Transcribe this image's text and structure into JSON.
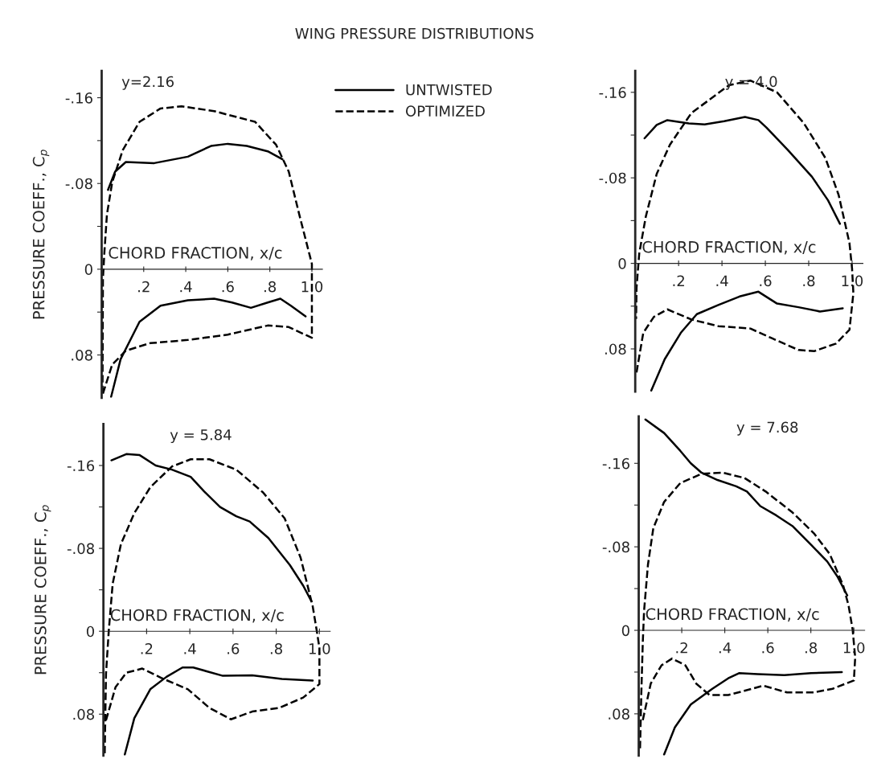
{
  "chart_data": [
    {
      "type": "line",
      "title": "WING PRESSURE DISTRIBUTIONS",
      "subtitle": "y=2.16",
      "xlabel": "CHORD FRACTION, x/c",
      "ylabel": "PRESSURE COEFF., C$_{p}$",
      "legend": "top right",
      "xlim": [
        0,
        1.05
      ],
      "ylim": [
        0.12,
        -0.185
      ],
      "xticks": [
        {
          "value": 0,
          "label": null
        },
        {
          "value": 0.2,
          "label": ".2"
        },
        {
          "value": 0.4,
          "label": ".4"
        },
        {
          "value": 0.6,
          "label": ".6"
        },
        {
          "value": 0.8,
          "label": ".8"
        },
        {
          "value": 1.0,
          "label": "1.0"
        }
      ],
      "yticks": [
        {
          "value": -0.16,
          "label": "-.16"
        },
        {
          "value": -0.12,
          "label": null
        },
        {
          "value": -0.08,
          "label": "-.08"
        },
        {
          "value": -0.04,
          "label": null
        },
        0,
        {
          "value": 0.04,
          "label": null
        },
        {
          "value": 0.08,
          "label": ".08"
        }
      ],
      "series": [
        {
          "name": "UNTWISTED",
          "color": "#000000",
          "line_style": "solid",
          "x": [
            0.03,
            0.064,
            0.115,
            0.25,
            0.41,
            0.52,
            0.6,
            0.69,
            0.79,
            0.86
          ],
          "values": [
            -0.074,
            -0.091,
            -0.1,
            -0.099,
            -0.105,
            -0.115,
            -0.117,
            -0.115,
            -0.11,
            -0.1025
          ]
        },
        {
          "color": "#000000",
          "line_style": "solid",
          "x": [
            0.045,
            0.09,
            0.18,
            0.28,
            0.41,
            0.535,
            0.62,
            0.71,
            0.79,
            0.85,
            0.9,
            0.97
          ],
          "values": [
            0.119,
            0.084,
            0.049,
            0.034,
            0.029,
            0.0275,
            0.031,
            0.036,
            0.031,
            0.0275,
            0.034,
            0.044
          ]
        },
        {
          "name": "OPTIMIZED",
          "color": "#000000",
          "line_style": "dashed",
          "x": [
            0.006,
            0.05,
            0.115,
            0.23,
            0.41,
            0.6,
            0.79,
            0.89,
            1.0,
            1.0,
            1.0,
            0.94,
            0.89,
            0.83,
            0.73,
            0.535,
            0.38,
            0.28,
            0.18,
            0.1,
            0.05,
            0.025,
            0.013,
            0.006,
            0.004
          ],
          "values": [
            0.116,
            0.089,
            0.076,
            0.069,
            0.066,
            0.061,
            0.0525,
            0.054,
            0.064,
            0.049,
            -0.005,
            -0.051,
            -0.091,
            -0.116,
            -0.1375,
            -0.1475,
            -0.152,
            -0.15,
            -0.1375,
            -0.111,
            -0.081,
            -0.051,
            -0.016,
            0.009,
            0.116
          ]
        }
      ]
    },
    {
      "type": "line",
      "subtitle": "y = 4.0",
      "xlabel": "CHORD FRACTION, x/c",
      "xlim": [
        0,
        1.05
      ],
      "ylim": [
        0.12,
        -0.18
      ],
      "xticks": [
        {
          "value": 0,
          "label": null
        },
        {
          "value": 0.2,
          "label": ".2"
        },
        {
          "value": 0.4,
          "label": ".4"
        },
        {
          "value": 0.6,
          "label": ".6"
        },
        {
          "value": 0.8,
          "label": ".8"
        },
        {
          "value": 1.0,
          "label": "1.0"
        }
      ],
      "yticks": [
        {
          "value": -0.16,
          "label": "-.16"
        },
        {
          "value": -0.12,
          "label": null
        },
        {
          "value": -0.08,
          "label": "-.08"
        },
        {
          "value": -0.04,
          "label": null
        },
        0,
        {
          "value": 0.04,
          "label": null
        },
        {
          "value": 0.08,
          "label": ".08"
        }
      ],
      "series": [
        {
          "color": "#000000",
          "line_style": "solid",
          "x": [
            0.043,
            0.099,
            0.148,
            0.247,
            0.32,
            0.41,
            0.506,
            0.568,
            0.605,
            0.704,
            0.815,
            0.889,
            0.944
          ],
          "values": [
            -0.117,
            -0.1295,
            -0.134,
            -0.131,
            -0.13,
            -0.133,
            -0.137,
            -0.134,
            -0.127,
            -0.106,
            -0.081,
            -0.059,
            -0.037
          ]
        },
        {
          "color": "#000000",
          "line_style": "solid",
          "x": [
            0.074,
            0.136,
            0.21,
            0.284,
            0.383,
            0.481,
            0.568,
            0.654,
            0.753,
            0.852,
            0.957
          ],
          "values": [
            0.119,
            0.0896,
            0.065,
            0.0475,
            0.039,
            0.031,
            0.0265,
            0.0376,
            0.041,
            0.045,
            0.042
          ]
        },
        {
          "color": "#000000",
          "line_style": "dashed",
          "x": [
            0.006,
            0.037,
            0.086,
            0.148,
            0.259,
            0.383,
            0.531,
            0.63,
            0.753,
            0.827,
            0.926,
            0.988,
            1.006,
            1.0,
            0.988,
            0.938,
            0.877,
            0.778,
            0.654,
            0.531,
            0.432,
            0.259,
            0.16,
            0.099,
            0.049,
            0.0185,
            0.006,
            0.004
          ],
          "values": [
            0.102,
            0.065,
            0.05,
            0.043,
            0.0525,
            0.0587,
            0.061,
            0.07,
            0.081,
            0.082,
            0.075,
            0.062,
            0.028,
            0.005,
            -0.019,
            -0.064,
            -0.0985,
            -0.131,
            -0.16,
            -0.171,
            -0.1666,
            -0.1406,
            -0.111,
            -0.0837,
            -0.044,
            -0.0094,
            0.0228,
            0.052
          ]
        }
      ]
    },
    {
      "type": "line",
      "subtitle": "y = 5.84",
      "xlabel": "CHORD FRACTION, x/c",
      "ylabel": "PRESSURE COEFF., C$_{p}$",
      "xlim": [
        0,
        1.05
      ],
      "ylim": [
        0.12,
        -0.2
      ],
      "xticks": [
        {
          "value": 0,
          "label": null
        },
        {
          "value": 0.2,
          "label": ".2"
        },
        {
          "value": 0.4,
          "label": ".4"
        },
        {
          "value": 0.6,
          "label": ".6"
        },
        {
          "value": 0.8,
          "label": ".8"
        },
        {
          "value": 1.0,
          "label": "1.0"
        }
      ],
      "yticks": [
        {
          "value": -0.16,
          "label": "-.16"
        },
        {
          "value": -0.12,
          "label": null
        },
        {
          "value": -0.08,
          "label": "-.08"
        },
        {
          "value": -0.04,
          "label": null
        },
        0,
        {
          "value": 0.04,
          "label": null
        },
        {
          "value": 0.08,
          "label": ".08"
        }
      ],
      "series": [
        {
          "color": "#000000",
          "line_style": "solid",
          "x": [
            0.037,
            0.106,
            0.168,
            0.242,
            0.317,
            0.404,
            0.466,
            0.54,
            0.615,
            0.677,
            0.764,
            0.863,
            0.925,
            0.963
          ],
          "values": [
            -0.165,
            -0.171,
            -0.17,
            -0.16,
            -0.156,
            -0.149,
            -0.135,
            -0.12,
            -0.111,
            -0.106,
            -0.09,
            -0.064,
            -0.044,
            -0.029
          ]
        },
        {
          "color": "#000000",
          "line_style": "solid",
          "x": [
            0.099,
            0.143,
            0.217,
            0.292,
            0.366,
            0.416,
            0.553,
            0.689,
            0.826,
            0.969
          ],
          "values": [
            0.119,
            0.084,
            0.056,
            0.044,
            0.035,
            0.035,
            0.043,
            0.0425,
            0.046,
            0.0475
          ]
        },
        {
          "color": "#000000",
          "line_style": "dashed",
          "x": [
            0.012,
            0.056,
            0.106,
            0.18,
            0.267,
            0.391,
            0.491,
            0.59,
            0.689,
            0.814,
            0.925,
            1.0,
            1.0,
            0.988,
            0.969,
            0.913,
            0.839,
            0.739,
            0.615,
            0.491,
            0.404,
            0.317,
            0.217,
            0.143,
            0.081,
            0.043,
            0.025,
            0.012,
            0.006
          ],
          "values": [
            0.086,
            0.054,
            0.04,
            0.036,
            0.045,
            0.056,
            0.074,
            0.085,
            0.0775,
            0.074,
            0.064,
            0.051,
            0.016,
            0,
            -0.024,
            -0.071,
            -0.109,
            -0.134,
            -0.156,
            -0.166,
            -0.166,
            -0.159,
            -0.139,
            -0.114,
            -0.084,
            -0.046,
            -0.001,
            0.041,
            0.119
          ]
        }
      ]
    },
    {
      "type": "line",
      "subtitle": "y = 7.68",
      "xlabel": "CHORD FRACTION, x/c",
      "xlim": [
        0,
        1.05
      ],
      "ylim": [
        0.12,
        -0.205
      ],
      "xticks": [
        {
          "value": 0,
          "label": null
        },
        {
          "value": 0.2,
          "label": ".2"
        },
        {
          "value": 0.4,
          "label": ".4"
        },
        {
          "value": 0.6,
          "label": ".6"
        },
        {
          "value": 0.8,
          "label": ".8"
        },
        {
          "value": 1.0,
          "label": "1.0"
        }
      ],
      "yticks": [
        {
          "value": -0.16,
          "label": "-.16"
        },
        {
          "value": -0.12,
          "label": null
        },
        {
          "value": -0.08,
          "label": "-.08"
        },
        {
          "value": -0.04,
          "label": null
        },
        0,
        {
          "value": 0.04,
          "label": null
        },
        {
          "value": 0.08,
          "label": ".08"
        }
      ],
      "series": [
        {
          "color": "#000000",
          "line_style": "solid",
          "x": [
            0.031,
            0.118,
            0.193,
            0.242,
            0.292,
            0.366,
            0.453,
            0.503,
            0.565,
            0.64,
            0.714,
            0.801,
            0.876,
            0.925,
            0.969
          ],
          "values": [
            -0.202,
            -0.189,
            -0.172,
            -0.16,
            -0.151,
            -0.144,
            -0.138,
            -0.133,
            -0.119,
            -0.11,
            -0.1,
            -0.082,
            -0.066,
            -0.051,
            -0.0335
          ]
        },
        {
          "color": "#000000",
          "line_style": "solid",
          "x": [
            0.118,
            0.168,
            0.242,
            0.342,
            0.416,
            0.466,
            0.553,
            0.677,
            0.801,
            0.944
          ],
          "values": [
            0.119,
            0.093,
            0.071,
            0.056,
            0.046,
            0.041,
            0.042,
            0.043,
            0.041,
            0.04
          ]
        },
        {
          "color": "#000000",
          "line_style": "dashed",
          "x": [
            0.019,
            0.056,
            0.106,
            0.155,
            0.217,
            0.267,
            0.329,
            0.416,
            0.491,
            0.578,
            0.689,
            0.814,
            0.901,
            1.0,
            1.006,
            0.994,
            0.975,
            0.95,
            0.888,
            0.814,
            0.714,
            0.59,
            0.491,
            0.391,
            0.292,
            0.193,
            0.118,
            0.068,
            0.043,
            0.025,
            0.019,
            0.012,
            0.006
          ],
          "values": [
            0.086,
            0.051,
            0.0335,
            0.027,
            0.0335,
            0.051,
            0.062,
            0.062,
            0.058,
            0.053,
            0.0595,
            0.0595,
            0.056,
            0.048,
            0.026,
            -0.001,
            -0.024,
            -0.043,
            -0.073,
            -0.093,
            -0.113,
            -0.133,
            -0.146,
            -0.151,
            -0.15,
            -0.141,
            -0.123,
            -0.098,
            -0.063,
            -0.019,
            0.011,
            0.061,
            0.115
          ]
        }
      ]
    }
  ]
}
